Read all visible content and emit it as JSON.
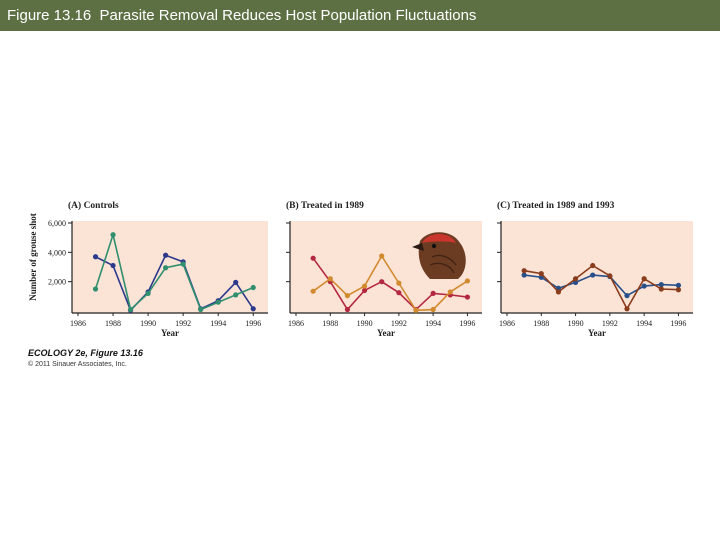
{
  "slide_title": "Figure 13.16  Parasite Removal Reduces Host Population Fluctuations",
  "caption": "ECOLOGY 2e, Figure 13.16",
  "copyright": "© 2011 Sinauer Associates, Inc.",
  "colors": {
    "title_bar": "#5d7043",
    "panel_bg": "#fbe3d6",
    "controls_blue": "#2d3a8c",
    "controls_green": "#2f8f6e",
    "treated_red": "#b3283f",
    "treated_orange": "#d18a2e",
    "c_blue": "#27508a",
    "c_brown": "#8a3d1c"
  },
  "icons": [
    "grouse-head-illustration"
  ],
  "chart_data": [
    {
      "type": "line",
      "title": "(A) Controls",
      "xlabel": "Year",
      "ylabel": "Number of grouse shot",
      "x_ticks": [
        "1986",
        "1988",
        "1990",
        "1992",
        "1994",
        "1996"
      ],
      "y_ticks": [
        "2,000",
        "4,000",
        "6,000"
      ],
      "xlim": [
        1986,
        1996.5
      ],
      "ylim": [
        0,
        6000
      ],
      "series": [
        {
          "color": "#2d3a8c",
          "x": [
            1987,
            1988,
            1989,
            1990,
            1991,
            1992,
            1993,
            1994,
            1995,
            1996
          ],
          "values": [
            3700,
            3100,
            50,
            1300,
            3800,
            3350,
            150,
            700,
            1950,
            150
          ]
        },
        {
          "color": "#2f8f6e",
          "x": [
            1987,
            1988,
            1989,
            1990,
            1991,
            1992,
            1993,
            1994,
            1995,
            1996
          ],
          "values": [
            1500,
            5200,
            100,
            1200,
            2950,
            3200,
            100,
            600,
            1100,
            1600
          ]
        }
      ]
    },
    {
      "type": "line",
      "title": "(B) Treated in 1989",
      "xlabel": "Year",
      "x_ticks": [
        "1986",
        "1988",
        "1990",
        "1992",
        "1994",
        "1996"
      ],
      "xlim": [
        1986,
        1996.5
      ],
      "ylim": [
        0,
        6000
      ],
      "series": [
        {
          "color": "#b3283f",
          "x": [
            1987,
            1988,
            1989,
            1990,
            1991,
            1992,
            1993,
            1994,
            1995,
            1996
          ],
          "values": [
            3600,
            2000,
            100,
            1400,
            2000,
            1250,
            100,
            1200,
            1100,
            950
          ]
        },
        {
          "color": "#d18a2e",
          "x": [
            1987,
            1988,
            1989,
            1990,
            1991,
            1992,
            1993,
            1994,
            1995,
            1996
          ],
          "values": [
            1350,
            2200,
            1050,
            1700,
            3750,
            1900,
            50,
            100,
            1300,
            2050
          ]
        }
      ]
    },
    {
      "type": "line",
      "title": "(C) Treated in 1989 and 1993",
      "xlabel": "Year",
      "x_ticks": [
        "1986",
        "1988",
        "1990",
        "1992",
        "1994",
        "1996"
      ],
      "xlim": [
        1986,
        1996.5
      ],
      "ylim": [
        0,
        6000
      ],
      "series": [
        {
          "color": "#27508a",
          "x": [
            1987,
            1988,
            1989,
            1990,
            1991,
            1992,
            1993,
            1994,
            1995,
            1996
          ],
          "values": [
            2450,
            2300,
            1550,
            1950,
            2450,
            2350,
            1050,
            1700,
            1800,
            1750
          ]
        },
        {
          "color": "#8a3d1c",
          "x": [
            1987,
            1988,
            1989,
            1990,
            1991,
            1992,
            1993,
            1994,
            1995,
            1996
          ],
          "values": [
            2750,
            2550,
            1300,
            2200,
            3100,
            2400,
            150,
            2200,
            1500,
            1450
          ]
        }
      ]
    }
  ]
}
